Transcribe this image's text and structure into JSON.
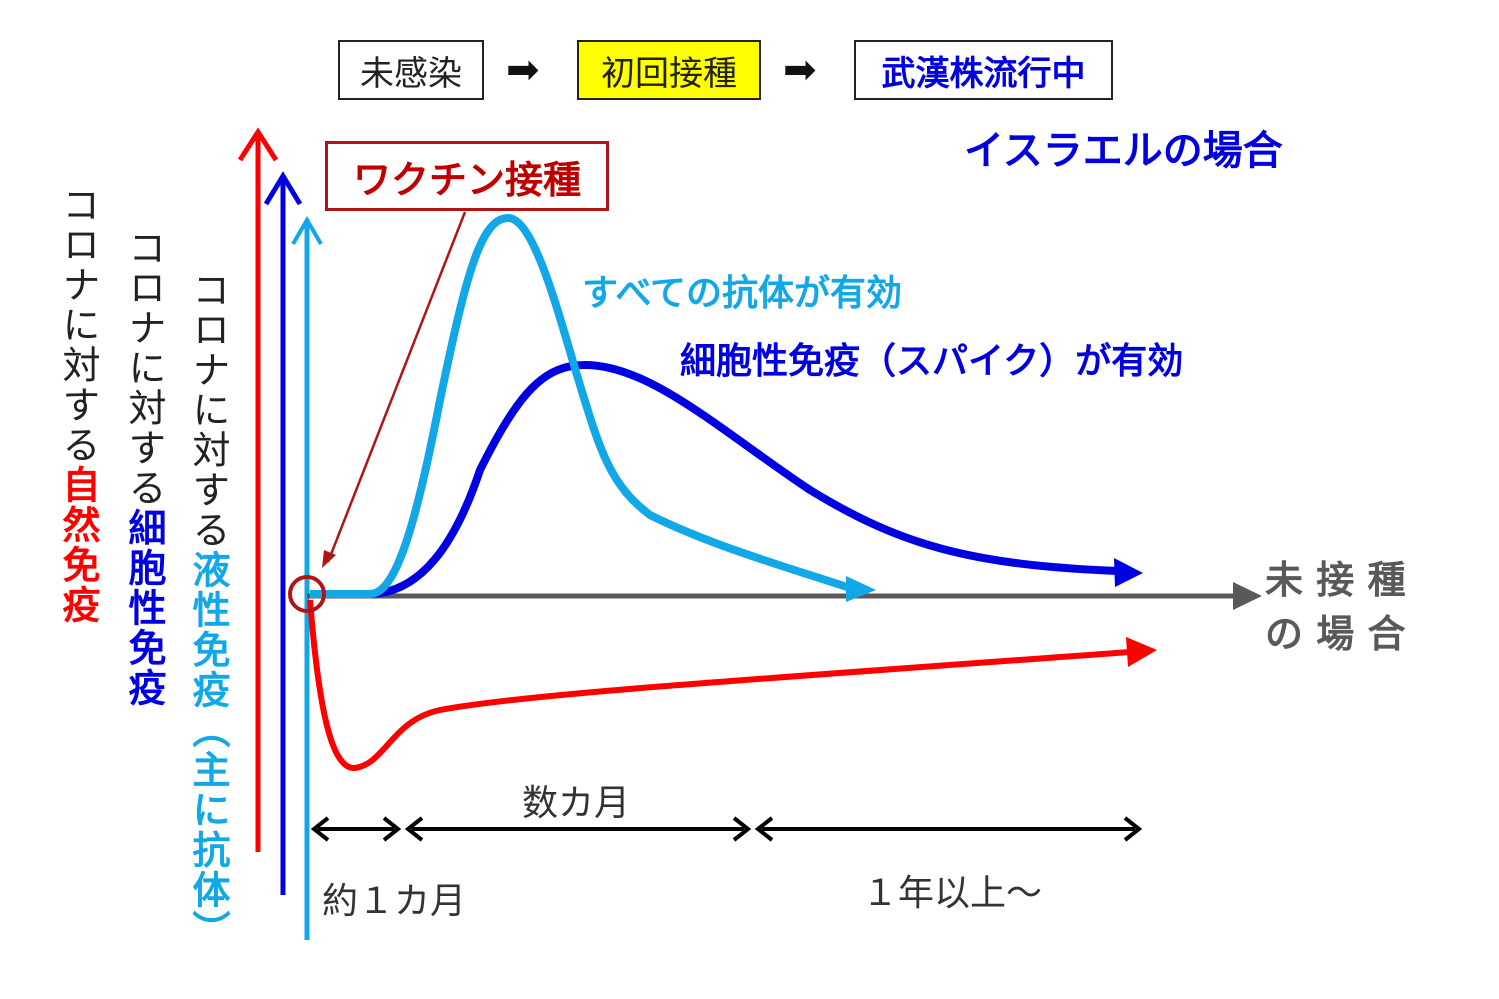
{
  "stages": [
    "未感染",
    "初回接種",
    "武漢株流行中"
  ],
  "stage_arrow": "➡",
  "country_label": "イスラエルの場合",
  "vaccine_label": "ワクチン接種",
  "humoral_effect": "すべての抗体が有効",
  "cellular_effect": "細胞性免疫（スパイク）が有効",
  "unvaccinated_label_1": "未 接 種",
  "unvaccinated_label_2": "の 場 合",
  "axis_natural": {
    "prefix": "コロナに対する",
    "emph": "自然免疫"
  },
  "axis_cellular": {
    "prefix": "コロナに対する",
    "emph": "細胞性免疫"
  },
  "axis_humoral": {
    "prefix": "コロナに対する",
    "emph": "液性免疫（主に抗体）"
  },
  "time_labels": {
    "one_month": "約１カ月",
    "few_months": "数カ月",
    "over_year": "１年以上～"
  },
  "colors": {
    "natural": "#ff0000",
    "cellular": "#0000e0",
    "humoral": "#12a7e6",
    "baseline": "#595959",
    "vaccine": "#b01515",
    "stage_highlight": "#ffff00"
  }
}
